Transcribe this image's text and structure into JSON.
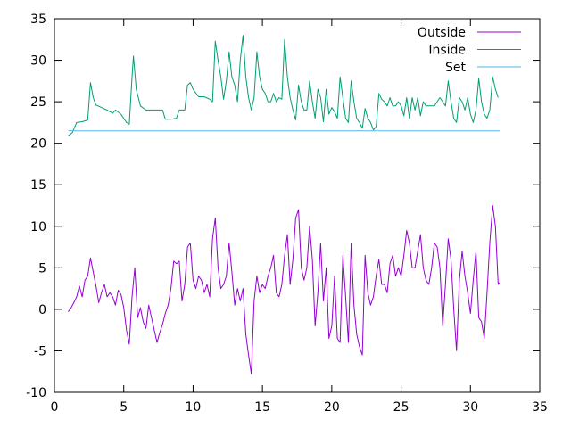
{
  "chart_data": {
    "type": "line",
    "title": "",
    "xlabel": "",
    "ylabel": "",
    "xlim": [
      0,
      35
    ],
    "ylim": [
      -10,
      35
    ],
    "x_ticks": [
      "0",
      "5",
      "10",
      "15",
      "20",
      "25",
      "30",
      "35"
    ],
    "y_ticks": [
      "-10",
      "-5",
      "0",
      "5",
      "10",
      "15",
      "20",
      "25",
      "30",
      "35"
    ],
    "grid": false,
    "legend_position": "top-right",
    "series": [
      {
        "name": "Outside",
        "color": "#9400d3",
        "points": [
          [
            1.0,
            -0.3
          ],
          [
            1.2,
            0.2
          ],
          [
            1.4,
            0.8
          ],
          [
            1.6,
            1.5
          ],
          [
            1.8,
            2.8
          ],
          [
            2.0,
            1.5
          ],
          [
            2.2,
            3.5
          ],
          [
            2.4,
            4.0
          ],
          [
            2.6,
            6.2
          ],
          [
            2.8,
            4.5
          ],
          [
            3.0,
            2.8
          ],
          [
            3.2,
            0.8
          ],
          [
            3.4,
            2.0
          ],
          [
            3.6,
            3.0
          ],
          [
            3.8,
            1.5
          ],
          [
            4.0,
            2.0
          ],
          [
            4.2,
            1.5
          ],
          [
            4.4,
            0.5
          ],
          [
            4.6,
            2.3
          ],
          [
            4.8,
            1.8
          ],
          [
            5.0,
            0.2
          ],
          [
            5.2,
            -2.5
          ],
          [
            5.4,
            -4.2
          ],
          [
            5.6,
            1.5
          ],
          [
            5.8,
            5.0
          ],
          [
            6.0,
            -1.0
          ],
          [
            6.2,
            0.2
          ],
          [
            6.4,
            -1.5
          ],
          [
            6.6,
            -2.3
          ],
          [
            6.8,
            0.5
          ],
          [
            7.0,
            -1.0
          ],
          [
            7.2,
            -2.5
          ],
          [
            7.4,
            -4.0
          ],
          [
            7.6,
            -2.8
          ],
          [
            7.8,
            -1.8
          ],
          [
            8.0,
            -0.5
          ],
          [
            8.2,
            0.5
          ],
          [
            8.4,
            2.5
          ],
          [
            8.6,
            5.8
          ],
          [
            8.8,
            5.5
          ],
          [
            9.0,
            5.8
          ],
          [
            9.2,
            1.0
          ],
          [
            9.4,
            3.0
          ],
          [
            9.6,
            7.5
          ],
          [
            9.8,
            8.0
          ],
          [
            10.0,
            3.5
          ],
          [
            10.2,
            2.5
          ],
          [
            10.4,
            4.0
          ],
          [
            10.6,
            3.5
          ],
          [
            10.8,
            2.0
          ],
          [
            11.0,
            3.0
          ],
          [
            11.2,
            1.5
          ],
          [
            11.4,
            8.5
          ],
          [
            11.6,
            11.0
          ],
          [
            11.8,
            5.0
          ],
          [
            12.0,
            2.5
          ],
          [
            12.2,
            3.0
          ],
          [
            12.4,
            4.0
          ],
          [
            12.6,
            8.0
          ],
          [
            12.8,
            4.5
          ],
          [
            13.0,
            0.5
          ],
          [
            13.2,
            2.5
          ],
          [
            13.4,
            1.0
          ],
          [
            13.6,
            2.5
          ],
          [
            13.8,
            -3.0
          ],
          [
            14.0,
            -5.5
          ],
          [
            14.2,
            -7.8
          ],
          [
            14.4,
            1.0
          ],
          [
            14.6,
            4.0
          ],
          [
            14.8,
            2.0
          ],
          [
            15.0,
            3.0
          ],
          [
            15.2,
            2.5
          ],
          [
            15.4,
            4.0
          ],
          [
            15.6,
            5.0
          ],
          [
            15.8,
            6.5
          ],
          [
            16.0,
            2.0
          ],
          [
            16.2,
            1.5
          ],
          [
            16.4,
            3.0
          ],
          [
            16.6,
            6.5
          ],
          [
            16.8,
            9.0
          ],
          [
            17.0,
            3.0
          ],
          [
            17.2,
            6.0
          ],
          [
            17.4,
            11.0
          ],
          [
            17.6,
            12.0
          ],
          [
            17.8,
            5.0
          ],
          [
            18.0,
            3.5
          ],
          [
            18.2,
            5.0
          ],
          [
            18.4,
            10.0
          ],
          [
            18.6,
            6.0
          ],
          [
            18.8,
            -2.0
          ],
          [
            19.0,
            2.0
          ],
          [
            19.2,
            8.0
          ],
          [
            19.4,
            1.0
          ],
          [
            19.6,
            5.0
          ],
          [
            19.8,
            -3.5
          ],
          [
            20.0,
            -2.0
          ],
          [
            20.2,
            4.0
          ],
          [
            20.4,
            -3.5
          ],
          [
            20.6,
            -4.0
          ],
          [
            20.8,
            6.5
          ],
          [
            21.0,
            1.5
          ],
          [
            21.2,
            -4.0
          ],
          [
            21.4,
            8.0
          ],
          [
            21.6,
            0.5
          ],
          [
            21.8,
            -3.0
          ],
          [
            22.0,
            -4.5
          ],
          [
            22.2,
            -5.5
          ],
          [
            22.4,
            6.5
          ],
          [
            22.6,
            2.0
          ],
          [
            22.8,
            0.5
          ],
          [
            23.0,
            1.5
          ],
          [
            23.2,
            4.0
          ],
          [
            23.4,
            6.0
          ],
          [
            23.6,
            3.0
          ],
          [
            23.8,
            3.0
          ],
          [
            24.0,
            2.0
          ],
          [
            24.2,
            5.5
          ],
          [
            24.4,
            6.5
          ],
          [
            24.6,
            4.0
          ],
          [
            24.8,
            5.0
          ],
          [
            25.0,
            4.0
          ],
          [
            25.2,
            6.5
          ],
          [
            25.4,
            9.5
          ],
          [
            25.6,
            8.0
          ],
          [
            25.8,
            5.0
          ],
          [
            26.0,
            5.0
          ],
          [
            26.2,
            7.0
          ],
          [
            26.4,
            9.0
          ],
          [
            26.6,
            5.0
          ],
          [
            26.8,
            3.5
          ],
          [
            27.0,
            3.0
          ],
          [
            27.2,
            5.0
          ],
          [
            27.4,
            8.0
          ],
          [
            27.6,
            7.5
          ],
          [
            27.8,
            5.0
          ],
          [
            28.0,
            -2.0
          ],
          [
            28.2,
            3.0
          ],
          [
            28.4,
            8.5
          ],
          [
            28.6,
            6.0
          ],
          [
            28.8,
            0.0
          ],
          [
            29.0,
            -5.0
          ],
          [
            29.2,
            3.5
          ],
          [
            29.4,
            7.0
          ],
          [
            29.6,
            4.0
          ],
          [
            29.8,
            2.0
          ],
          [
            30.0,
            -0.5
          ],
          [
            30.2,
            3.5
          ],
          [
            30.4,
            7.0
          ],
          [
            30.6,
            -1.0
          ],
          [
            30.8,
            -1.5
          ],
          [
            31.0,
            -3.5
          ],
          [
            31.2,
            2.0
          ],
          [
            31.4,
            8.0
          ],
          [
            31.6,
            12.5
          ],
          [
            31.8,
            10.0
          ],
          [
            32.0,
            3.0
          ],
          [
            32.1,
            3.2
          ]
        ]
      },
      {
        "name": "Inside",
        "color": "#009e73",
        "points": [
          [
            1.0,
            20.9
          ],
          [
            1.3,
            21.3
          ],
          [
            1.6,
            22.5
          ],
          [
            2.0,
            22.6
          ],
          [
            2.4,
            22.8
          ],
          [
            2.6,
            27.3
          ],
          [
            2.8,
            25.5
          ],
          [
            3.0,
            24.6
          ],
          [
            3.4,
            24.3
          ],
          [
            3.8,
            24.0
          ],
          [
            4.2,
            23.6
          ],
          [
            4.4,
            24.0
          ],
          [
            4.8,
            23.5
          ],
          [
            5.2,
            22.5
          ],
          [
            5.4,
            22.3
          ],
          [
            5.6,
            28.0
          ],
          [
            5.7,
            30.5
          ],
          [
            5.9,
            26.5
          ],
          [
            6.2,
            24.5
          ],
          [
            6.6,
            24.0
          ],
          [
            7.0,
            24.0
          ],
          [
            7.4,
            24.0
          ],
          [
            7.8,
            24.0
          ],
          [
            8.0,
            22.9
          ],
          [
            8.4,
            22.9
          ],
          [
            8.8,
            23.0
          ],
          [
            9.0,
            24.0
          ],
          [
            9.4,
            24.0
          ],
          [
            9.6,
            27.0
          ],
          [
            9.8,
            27.3
          ],
          [
            10.0,
            26.5
          ],
          [
            10.4,
            25.6
          ],
          [
            10.8,
            25.6
          ],
          [
            11.2,
            25.3
          ],
          [
            11.4,
            25.0
          ],
          [
            11.6,
            32.3
          ],
          [
            11.8,
            30.0
          ],
          [
            12.0,
            28.0
          ],
          [
            12.2,
            25.3
          ],
          [
            12.4,
            27.5
          ],
          [
            12.6,
            31.0
          ],
          [
            12.8,
            28.0
          ],
          [
            13.0,
            27.0
          ],
          [
            13.2,
            25.0
          ],
          [
            13.4,
            30.0
          ],
          [
            13.6,
            33.0
          ],
          [
            13.8,
            28.0
          ],
          [
            14.0,
            25.5
          ],
          [
            14.2,
            24.0
          ],
          [
            14.4,
            25.5
          ],
          [
            14.6,
            31.0
          ],
          [
            14.8,
            28.0
          ],
          [
            15.0,
            26.5
          ],
          [
            15.2,
            26.0
          ],
          [
            15.4,
            25.0
          ],
          [
            15.6,
            25.0
          ],
          [
            15.8,
            26.0
          ],
          [
            16.0,
            25.0
          ],
          [
            16.2,
            25.5
          ],
          [
            16.4,
            25.3
          ],
          [
            16.6,
            32.5
          ],
          [
            16.8,
            28.0
          ],
          [
            17.0,
            25.5
          ],
          [
            17.2,
            24.0
          ],
          [
            17.4,
            22.8
          ],
          [
            17.6,
            27.0
          ],
          [
            17.8,
            25.0
          ],
          [
            18.0,
            24.0
          ],
          [
            18.2,
            24.0
          ],
          [
            18.4,
            27.5
          ],
          [
            18.6,
            25.0
          ],
          [
            18.8,
            23.0
          ],
          [
            19.0,
            26.5
          ],
          [
            19.2,
            25.5
          ],
          [
            19.4,
            22.6
          ],
          [
            19.6,
            26.5
          ],
          [
            19.8,
            23.5
          ],
          [
            20.0,
            24.3
          ],
          [
            20.2,
            23.8
          ],
          [
            20.4,
            23.0
          ],
          [
            20.6,
            28.0
          ],
          [
            20.8,
            25.5
          ],
          [
            21.0,
            23.0
          ],
          [
            21.2,
            22.5
          ],
          [
            21.4,
            27.5
          ],
          [
            21.6,
            25.0
          ],
          [
            21.8,
            23.0
          ],
          [
            22.0,
            22.5
          ],
          [
            22.2,
            21.8
          ],
          [
            22.4,
            24.2
          ],
          [
            22.6,
            23.0
          ],
          [
            22.8,
            22.5
          ],
          [
            23.0,
            21.6
          ],
          [
            23.2,
            22.0
          ],
          [
            23.4,
            26.0
          ],
          [
            23.6,
            25.3
          ],
          [
            23.8,
            25.0
          ],
          [
            24.0,
            24.5
          ],
          [
            24.2,
            25.5
          ],
          [
            24.4,
            24.5
          ],
          [
            24.6,
            24.5
          ],
          [
            24.8,
            25.0
          ],
          [
            25.0,
            24.5
          ],
          [
            25.2,
            23.3
          ],
          [
            25.4,
            25.5
          ],
          [
            25.6,
            23.0
          ],
          [
            25.8,
            25.5
          ],
          [
            26.0,
            24.0
          ],
          [
            26.2,
            25.5
          ],
          [
            26.4,
            23.3
          ],
          [
            26.6,
            25.0
          ],
          [
            26.8,
            24.5
          ],
          [
            27.0,
            24.5
          ],
          [
            27.2,
            24.5
          ],
          [
            27.4,
            24.5
          ],
          [
            27.6,
            25.0
          ],
          [
            27.8,
            25.5
          ],
          [
            28.0,
            25.0
          ],
          [
            28.2,
            24.5
          ],
          [
            28.4,
            27.5
          ],
          [
            28.6,
            25.0
          ],
          [
            28.8,
            23.0
          ],
          [
            29.0,
            22.5
          ],
          [
            29.2,
            25.5
          ],
          [
            29.4,
            25.0
          ],
          [
            29.6,
            24.0
          ],
          [
            29.8,
            25.5
          ],
          [
            30.0,
            23.5
          ],
          [
            30.2,
            22.5
          ],
          [
            30.4,
            24.0
          ],
          [
            30.6,
            27.8
          ],
          [
            30.8,
            25.0
          ],
          [
            31.0,
            23.5
          ],
          [
            31.2,
            23.0
          ],
          [
            31.4,
            24.0
          ],
          [
            31.6,
            28.0
          ],
          [
            31.8,
            26.5
          ],
          [
            32.0,
            25.5
          ]
        ]
      },
      {
        "name": "Set",
        "color": "#56b4e9",
        "points": [
          [
            1.0,
            21.5
          ],
          [
            32.1,
            21.5
          ]
        ]
      }
    ]
  }
}
